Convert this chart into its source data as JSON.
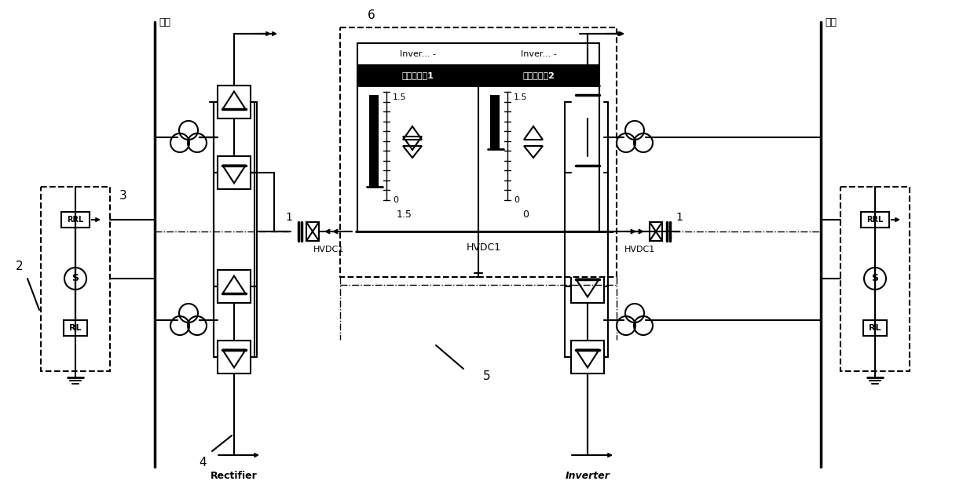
{
  "bg_color": "#ffffff",
  "busbar_label": "母线",
  "label_2": "2",
  "label_3": "3",
  "label_4": "4",
  "label_5": "5",
  "label_6": "6",
  "label_1": "1",
  "rectifier": "Rectifier",
  "inverter": "Inverter",
  "hvdc1": "HVDC1",
  "panel_title1": "直流输电杗1",
  "panel_title2": "直流输电杗2",
  "inver1": "Inver... -",
  "inver2": "Inver... -",
  "val_1_5": "1.5",
  "val_0": "0",
  "val_bottom_left": "1.5",
  "val_bottom_right": "0"
}
